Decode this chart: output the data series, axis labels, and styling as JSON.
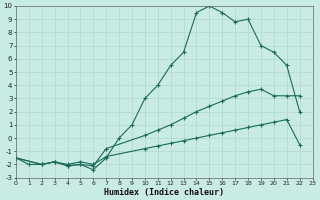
{
  "xlabel": "Humidex (Indice chaleur)",
  "bg_color": "#c8ebe3",
  "grid_color": "#b0d8d0",
  "line_color": "#1a6b5a",
  "xlim": [
    0,
    23
  ],
  "ylim": [
    -3,
    10
  ],
  "xticks": [
    0,
    1,
    2,
    3,
    4,
    5,
    6,
    7,
    8,
    9,
    10,
    11,
    12,
    13,
    14,
    15,
    16,
    17,
    18,
    19,
    20,
    21,
    22,
    23
  ],
  "yticks": [
    -3,
    -2,
    -1,
    0,
    1,
    2,
    3,
    4,
    5,
    6,
    7,
    8,
    9,
    10
  ],
  "line1_x": [
    0,
    1,
    2,
    3,
    4,
    5,
    6,
    7,
    8,
    9,
    10,
    11,
    12,
    13,
    14,
    15,
    16,
    17,
    18,
    19,
    20,
    21,
    22
  ],
  "line1_y": [
    -1.5,
    -2,
    -2,
    -1.8,
    -2.1,
    -2,
    -2.4,
    -1.5,
    0,
    1,
    3,
    4,
    5.5,
    6.5,
    9.5,
    10,
    9.5,
    8.8,
    9,
    7,
    6.5,
    5.5,
    2
  ],
  "line2_x": [
    0,
    2,
    3,
    4,
    5,
    6,
    7,
    10,
    11,
    12,
    13,
    14,
    15,
    16,
    17,
    18,
    19,
    20,
    21,
    22
  ],
  "line2_y": [
    -1.5,
    -2,
    -1.8,
    -2.1,
    -2,
    -2.1,
    -0.8,
    0.2,
    0.6,
    1.0,
    1.5,
    2.0,
    2.4,
    2.8,
    3.2,
    3.5,
    3.7,
    3.2,
    3.2,
    3.2
  ],
  "line3_x": [
    0,
    2,
    3,
    4,
    5,
    6,
    7,
    10,
    11,
    12,
    13,
    14,
    15,
    16,
    17,
    18,
    19,
    20,
    21,
    22
  ],
  "line3_y": [
    -1.5,
    -2,
    -1.8,
    -2,
    -1.8,
    -2,
    -1.4,
    -0.8,
    -0.6,
    -0.4,
    -0.2,
    0.0,
    0.2,
    0.4,
    0.6,
    0.8,
    1.0,
    1.2,
    1.4,
    -0.5
  ]
}
